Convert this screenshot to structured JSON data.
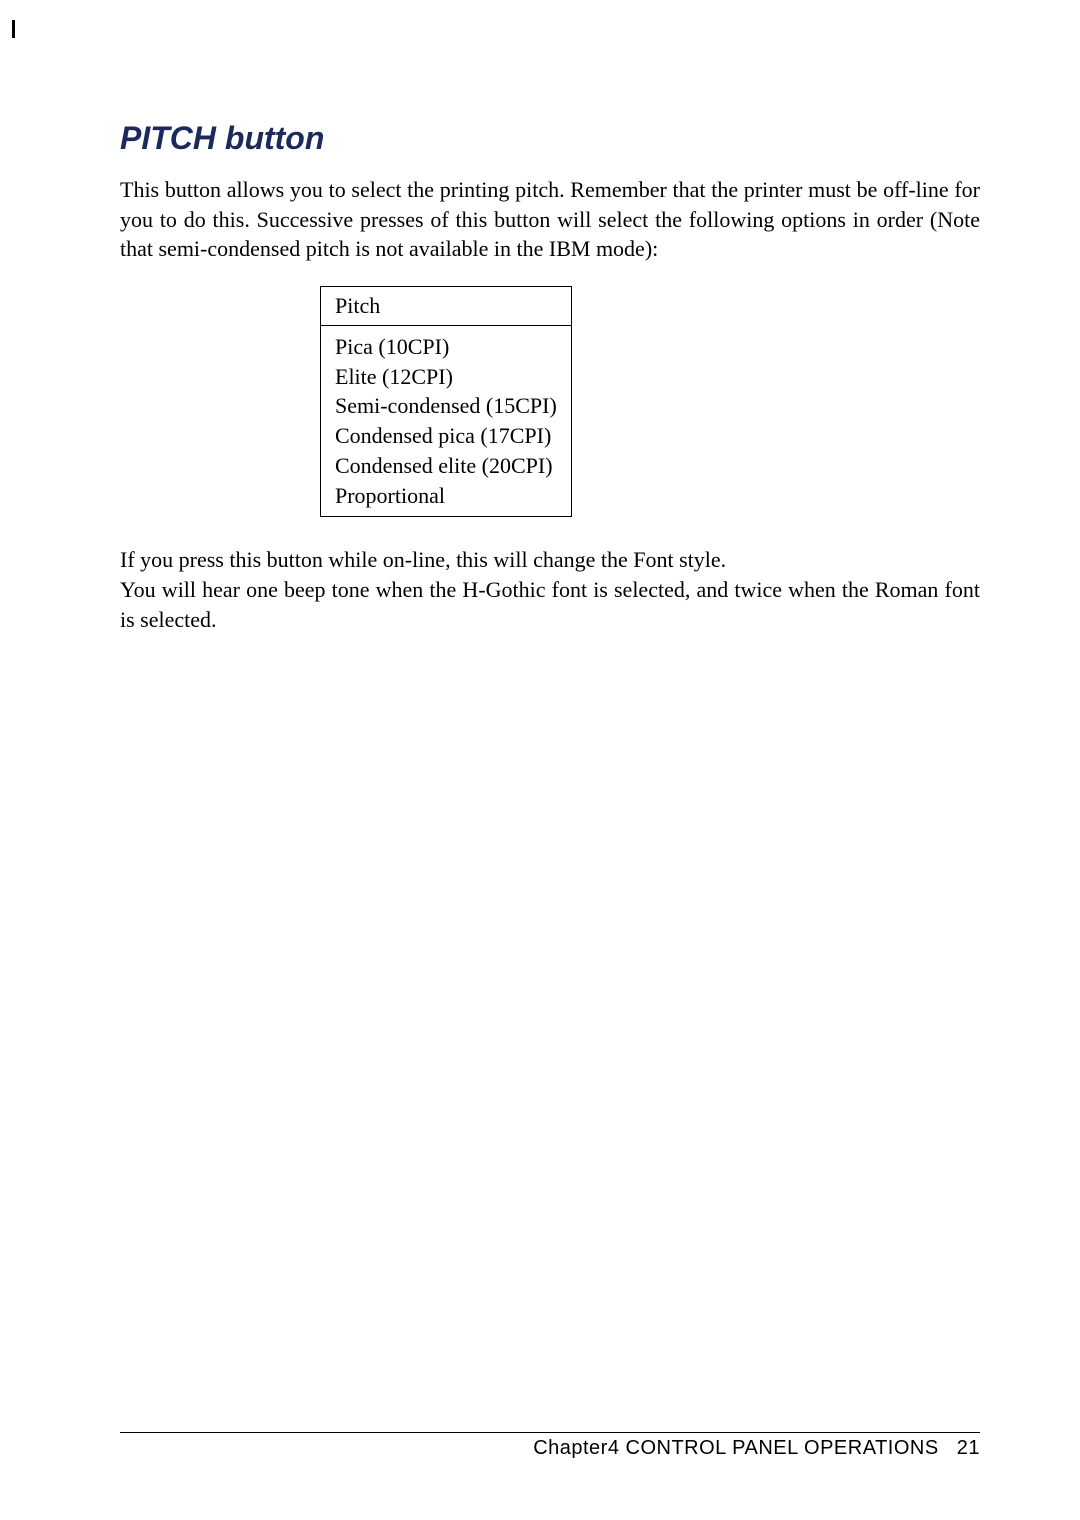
{
  "section": {
    "title": "PITCH button",
    "paragraph1": "This button allows you to select the printing pitch. Remember that the printer must be off-line for you to do this. Successive presses of this button will select the following options in order (Note that semi-condensed pitch is not available in the IBM mode):",
    "table": {
      "header": "Pitch",
      "rows": [
        "Pica (10CPI)",
        "Elite (12CPI)",
        "Semi-condensed (15CPI)",
        "Condensed pica (17CPI)",
        "Condensed elite (20CPI)",
        "Proportional"
      ]
    },
    "paragraph2_line1": "If you press this button while on-line, this will change the Font style.",
    "paragraph2_line2": "You will hear one beep tone when the H-Gothic font is selected, and twice when the Roman font is selected."
  },
  "footer": {
    "chapter": "Chapter4  CONTROL PANEL OPERATIONS",
    "page": "21"
  },
  "colors": {
    "title_color": "#1a2a5a",
    "text_color": "#000000",
    "background": "#ffffff"
  }
}
